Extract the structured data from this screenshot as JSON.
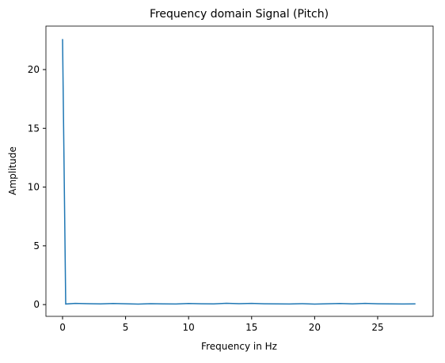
{
  "chart_data": {
    "type": "line",
    "title": "Frequency domain Signal (Pitch)",
    "xlabel": "Frequency in Hz",
    "ylabel": "Amplitude",
    "x": [
      0,
      0.25,
      1,
      2,
      3,
      4,
      5,
      6,
      7,
      8,
      9,
      10,
      11,
      12,
      13,
      14,
      15,
      16,
      17,
      18,
      19,
      20,
      21,
      22,
      23,
      24,
      25,
      26,
      27,
      28
    ],
    "series": [
      {
        "name": "Amplitude",
        "color": "#1f77b4",
        "values": [
          22.6,
          0.05,
          0.1,
          0.08,
          0.06,
          0.09,
          0.07,
          0.04,
          0.08,
          0.06,
          0.05,
          0.09,
          0.07,
          0.06,
          0.11,
          0.08,
          0.1,
          0.07,
          0.06,
          0.05,
          0.08,
          0.04,
          0.07,
          0.09,
          0.06,
          0.1,
          0.07,
          0.06,
          0.05,
          0.06
        ]
      }
    ],
    "xlim": [
      -1.32,
      29.4
    ],
    "ylim": [
      -1.0,
      23.7
    ],
    "xticks": [
      0,
      5,
      10,
      15,
      20,
      25
    ],
    "yticks": [
      0,
      5,
      10,
      15,
      20
    ],
    "grid": false
  }
}
